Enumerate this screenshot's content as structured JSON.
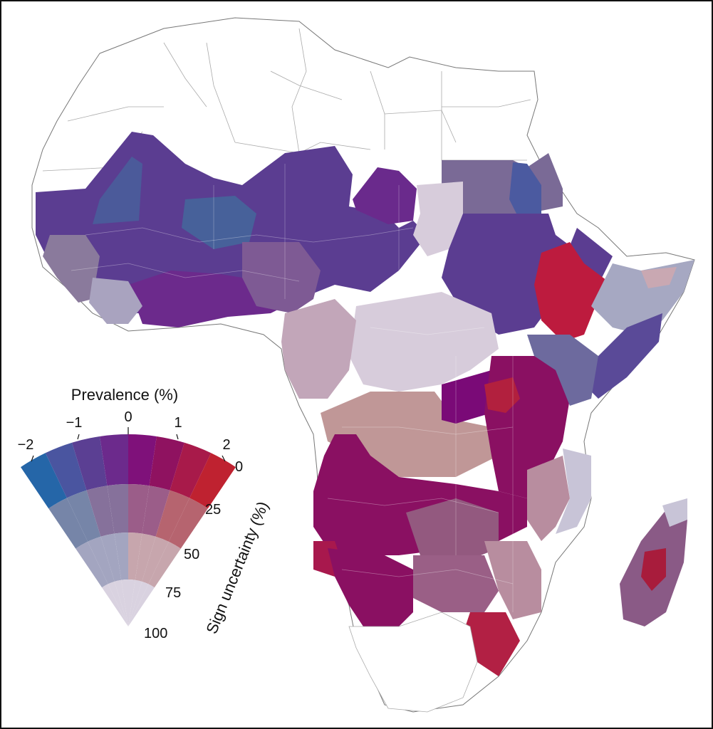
{
  "legend": {
    "prevalence_title": "Prevalence (%)",
    "prevalence_ticks": [
      "−2",
      "−1",
      "0",
      "1",
      "2"
    ],
    "uncertainty_title": "Sign uncertainty (%)",
    "uncertainty_ticks": [
      "0",
      "25",
      "50",
      "75",
      "100"
    ]
  },
  "colors": {
    "blue_strong": "#2566a8",
    "indigo": "#5b3d91",
    "purple": "#6c2a8c",
    "magenta": "#8a1062",
    "crimson": "#b61c3f",
    "red": "#c0242b",
    "slate": "#707c9c",
    "mauve": "#93597f",
    "rose": "#c09797",
    "lilac_pale": "#d7ccdb",
    "grey_blue": "#a6a8c2",
    "border": "#9a9a9a"
  }
}
